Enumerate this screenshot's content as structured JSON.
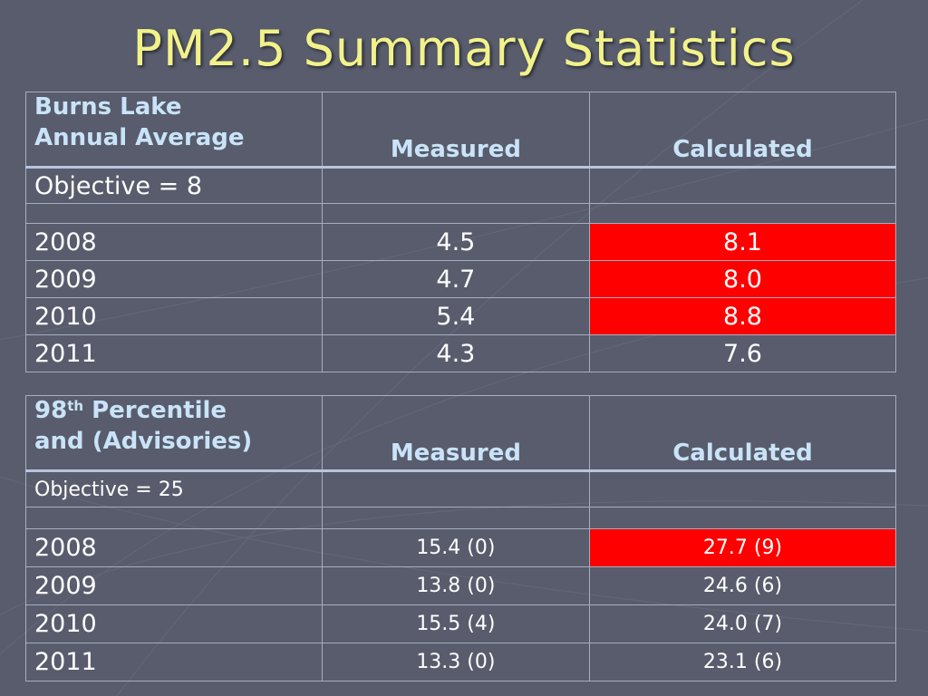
{
  "slide": {
    "title": "PM2.5 Summary Statistics"
  },
  "table1": {
    "header": {
      "line1": "Burns Lake",
      "line2": "Annual Average",
      "measured": "Measured",
      "calculated": "Calculated"
    },
    "objective": "Objective = 8",
    "rows": [
      {
        "year": "2008",
        "measured": "4.5",
        "calculated": "8.1",
        "highlight": true
      },
      {
        "year": "2009",
        "measured": "4.7",
        "calculated": "8.0",
        "highlight": true
      },
      {
        "year": "2010",
        "measured": "5.4",
        "calculated": "8.8",
        "highlight": true
      },
      {
        "year": "2011",
        "measured": "4.3",
        "calculated": "7.6",
        "highlight": false
      }
    ]
  },
  "table2": {
    "header": {
      "number": "98",
      "superscript": "th",
      "line1_rest": " Percentile",
      "line2": "and (Advisories)",
      "measured": "Measured",
      "calculated": "Calculated"
    },
    "objective": "Objective = 25",
    "rows": [
      {
        "year": "2008",
        "measured": "15.4 (0)",
        "calculated": "27.7 (9)",
        "highlight": true
      },
      {
        "year": "2009",
        "measured": "13.8 (0)",
        "calculated": "24.6 (6)",
        "highlight": false
      },
      {
        "year": "2010",
        "measured": "15.5 (4)",
        "calculated": "24.0 (7)",
        "highlight": false
      },
      {
        "year": "2011",
        "measured": "13.3 (0)",
        "calculated": "23.1 (6)",
        "highlight": false
      }
    ]
  },
  "colors": {
    "background": "#585c6c",
    "title": "#f2f28a",
    "header_text": "#c9e3f8",
    "exceedance": "#ff0000"
  }
}
